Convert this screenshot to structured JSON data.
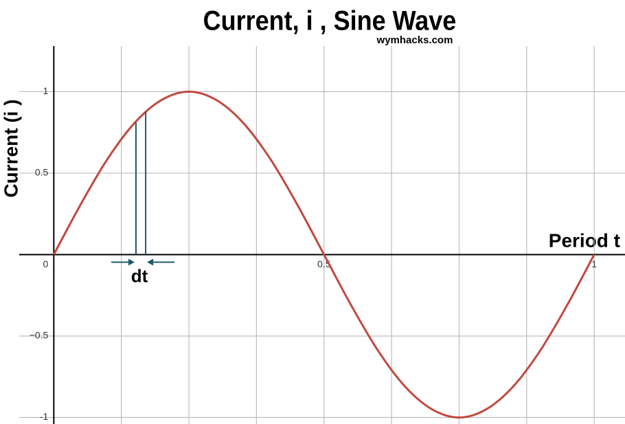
{
  "chart_data": {
    "type": "line",
    "title": "Current, i , Sine Wave",
    "watermark": "wymhacks.com",
    "y_label": "Current (i )",
    "x_label": "Period t",
    "x": [
      0,
      0.05,
      0.1,
      0.15,
      0.2,
      0.25,
      0.3,
      0.35,
      0.4,
      0.45,
      0.5,
      0.55,
      0.6,
      0.65,
      0.7,
      0.75,
      0.8,
      0.85,
      0.9,
      0.95,
      1
    ],
    "series": [
      {
        "name": "i",
        "color": "#c0493f",
        "values": [
          0,
          0.31,
          0.59,
          0.81,
          0.95,
          1,
          0.95,
          0.81,
          0.59,
          0.31,
          0,
          -0.31,
          -0.59,
          -0.81,
          -0.95,
          -1,
          -0.95,
          -0.81,
          -0.59,
          -0.31,
          0
        ]
      }
    ],
    "xlim": [
      -0.064,
      1.057
    ],
    "ylim": [
      -1.04,
      1.28
    ],
    "xticks": [
      0,
      0.5,
      1
    ],
    "xgrid": [
      0.125,
      0.25,
      0.375,
      0.625,
      0.75,
      0.875
    ],
    "yticks": [
      {
        "value": -1,
        "label": "-1"
      },
      {
        "value": -0.5,
        "label": "−0.5"
      },
      0.5,
      1
    ],
    "grid": true,
    "annotation": {
      "text": "dt",
      "color": "#1c5a6b",
      "lines": [
        {
          "x": 0.152,
          "y": 0.81
        },
        {
          "x": 0.17,
          "y": 0.88
        }
      ]
    }
  }
}
